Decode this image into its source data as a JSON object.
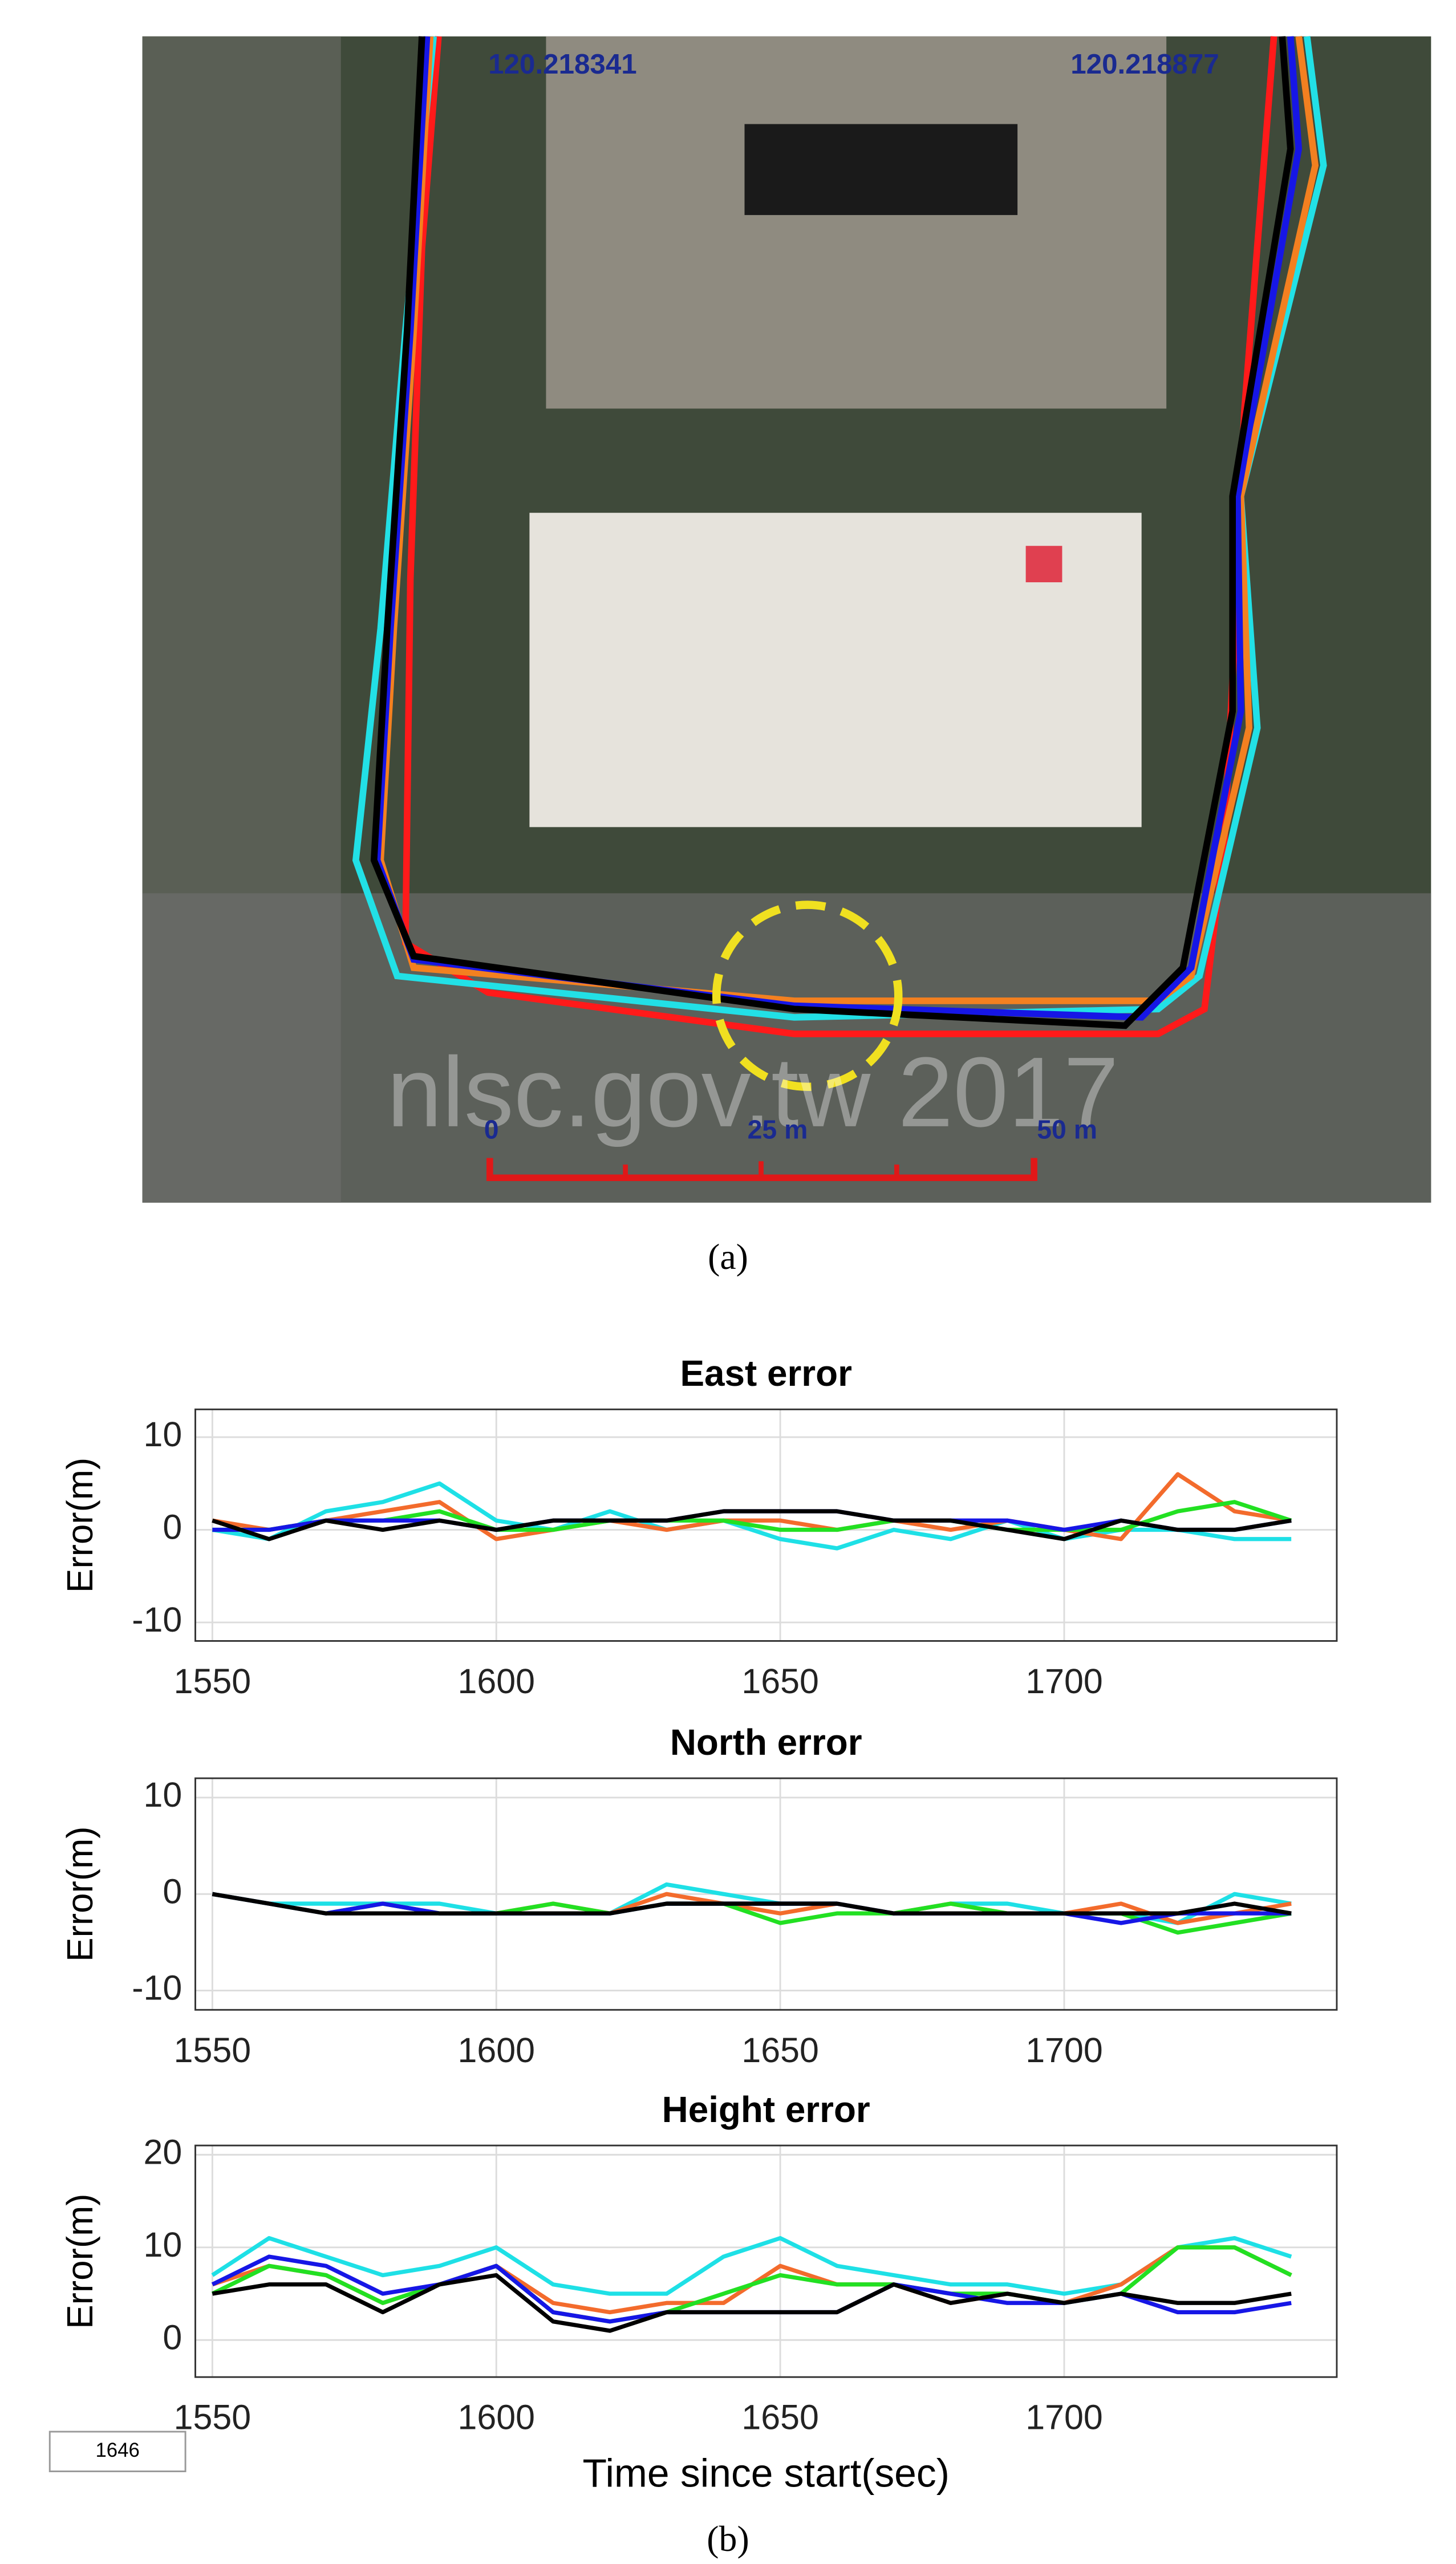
{
  "figure": {
    "map": {
      "lon_left": "120.218341",
      "lon_right": "120.218877",
      "watermark": "nlsc.gov.tw 2017",
      "scale_0": "0",
      "scale_25": "25 m",
      "scale_50": "50 m"
    },
    "caption_a": "(a)",
    "caption_b": "(b)",
    "page_box": "1646"
  },
  "chart_data": [
    {
      "type": "line",
      "title": "East error",
      "y_label": "Error(m)",
      "grid": true,
      "xlim": [
        1547,
        1748
      ],
      "xticks": [
        1550,
        1600,
        1650,
        1700
      ],
      "ylim": [
        -12,
        13
      ],
      "yticks": [
        -10,
        0,
        10
      ],
      "x": [
        1550,
        1560,
        1570,
        1580,
        1590,
        1600,
        1610,
        1620,
        1630,
        1640,
        1650,
        1660,
        1670,
        1680,
        1690,
        1700,
        1710,
        1720,
        1730,
        1740
      ],
      "series": [
        {
          "color": "#1ee0e6",
          "values": [
            0,
            -1,
            2,
            3,
            5,
            1,
            0,
            2,
            0,
            1,
            -1,
            -2,
            0,
            -1,
            1,
            -1,
            0,
            0,
            -1,
            -1
          ]
        },
        {
          "color": "#f36b2c",
          "values": [
            1,
            0,
            1,
            2,
            3,
            -1,
            0,
            1,
            0,
            1,
            1,
            0,
            1,
            0,
            1,
            0,
            -1,
            6,
            2,
            1
          ]
        },
        {
          "color": "#22e022",
          "values": [
            0,
            0,
            1,
            1,
            2,
            0,
            0,
            1,
            1,
            1,
            0,
            0,
            1,
            1,
            0,
            0,
            0,
            2,
            3,
            1
          ]
        },
        {
          "color": "#1616e6",
          "values": [
            0,
            0,
            1,
            1,
            1,
            0,
            1,
            1,
            1,
            2,
            2,
            2,
            1,
            1,
            1,
            0,
            1,
            0,
            0,
            1
          ]
        },
        {
          "color": "#000000",
          "values": [
            1,
            -1,
            1,
            0,
            1,
            0,
            1,
            1,
            1,
            2,
            2,
            2,
            1,
            1,
            0,
            -1,
            1,
            0,
            0,
            1
          ]
        }
      ]
    },
    {
      "type": "line",
      "title": "North error",
      "y_label": "Error(m)",
      "grid": true,
      "xlim": [
        1547,
        1748
      ],
      "xticks": [
        1550,
        1600,
        1650,
        1700
      ],
      "ylim": [
        -12,
        12
      ],
      "yticks": [
        -10,
        0,
        10
      ],
      "x": [
        1550,
        1560,
        1570,
        1580,
        1590,
        1600,
        1610,
        1620,
        1630,
        1640,
        1650,
        1660,
        1670,
        1680,
        1690,
        1700,
        1710,
        1720,
        1730,
        1740
      ],
      "series": [
        {
          "color": "#1ee0e6",
          "values": [
            0,
            -1,
            -1,
            -1,
            -1,
            -2,
            -2,
            -2,
            1,
            0,
            -1,
            -1,
            -2,
            -1,
            -1,
            -2,
            -2,
            -3,
            0,
            -1
          ]
        },
        {
          "color": "#f36b2c",
          "values": [
            0,
            -1,
            -2,
            -1,
            -2,
            -2,
            -1,
            -2,
            0,
            -1,
            -2,
            -1,
            -2,
            -1,
            -2,
            -2,
            -1,
            -3,
            -2,
            -1
          ]
        },
        {
          "color": "#22e022",
          "values": [
            0,
            -1,
            -2,
            -1,
            -2,
            -2,
            -1,
            -2,
            -1,
            -1,
            -3,
            -2,
            -2,
            -1,
            -2,
            -2,
            -2,
            -4,
            -3,
            -2
          ]
        },
        {
          "color": "#1616e6",
          "values": [
            0,
            -1,
            -2,
            -1,
            -2,
            -2,
            -2,
            -2,
            -1,
            -1,
            -1,
            -1,
            -2,
            -2,
            -2,
            -2,
            -3,
            -2,
            -2,
            -2
          ]
        },
        {
          "color": "#000000",
          "values": [
            0,
            -1,
            -2,
            -2,
            -2,
            -2,
            -2,
            -2,
            -1,
            -1,
            -1,
            -1,
            -2,
            -2,
            -2,
            -2,
            -2,
            -2,
            -1,
            -2
          ]
        }
      ]
    },
    {
      "type": "line",
      "title": "Height error",
      "y_label": "Error(m)",
      "x_label": "Time since start(sec)",
      "grid": true,
      "xlim": [
        1547,
        1748
      ],
      "xticks": [
        1550,
        1600,
        1650,
        1700
      ],
      "ylim": [
        -4,
        21
      ],
      "yticks": [
        0,
        10,
        20
      ],
      "x": [
        1550,
        1560,
        1570,
        1580,
        1590,
        1600,
        1610,
        1620,
        1630,
        1640,
        1650,
        1660,
        1670,
        1680,
        1690,
        1700,
        1710,
        1720,
        1730,
        1740
      ],
      "series": [
        {
          "color": "#1ee0e6",
          "values": [
            7,
            11,
            9,
            7,
            8,
            10,
            6,
            5,
            5,
            9,
            11,
            8,
            7,
            6,
            6,
            5,
            6,
            10,
            11,
            9
          ]
        },
        {
          "color": "#f36b2c",
          "values": [
            6,
            8,
            7,
            4,
            6,
            8,
            4,
            3,
            4,
            4,
            8,
            6,
            6,
            4,
            5,
            4,
            6,
            10,
            10,
            7
          ]
        },
        {
          "color": "#22e022",
          "values": [
            5,
            8,
            7,
            4,
            6,
            8,
            3,
            2,
            3,
            5,
            7,
            6,
            6,
            5,
            5,
            4,
            5,
            10,
            10,
            7
          ]
        },
        {
          "color": "#1616e6",
          "values": [
            6,
            9,
            8,
            5,
            6,
            8,
            3,
            2,
            3,
            3,
            3,
            3,
            6,
            5,
            4,
            4,
            5,
            3,
            3,
            4
          ]
        },
        {
          "color": "#000000",
          "values": [
            5,
            6,
            6,
            3,
            6,
            7,
            2,
            1,
            3,
            3,
            3,
            3,
            6,
            4,
            5,
            4,
            5,
            4,
            4,
            5
          ]
        }
      ]
    }
  ]
}
